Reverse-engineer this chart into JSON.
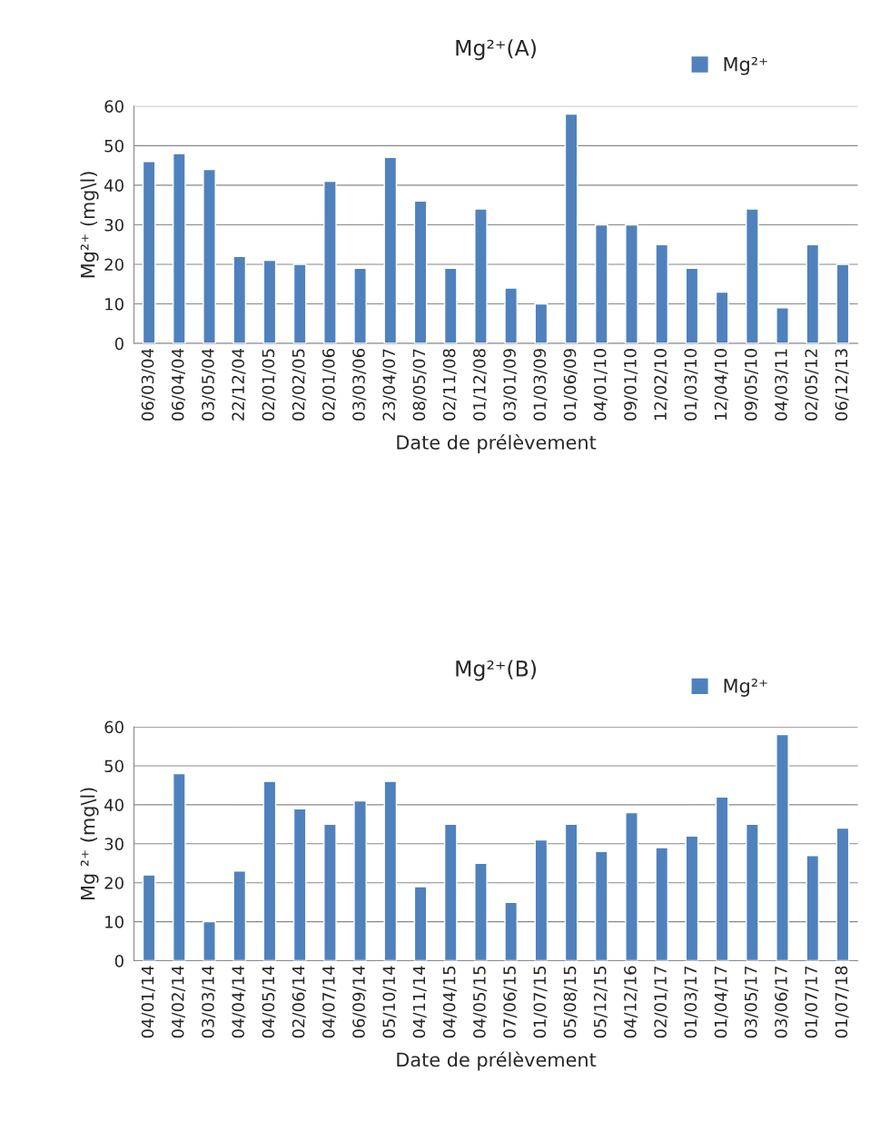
{
  "chart_data": [
    {
      "type": "bar",
      "title": "Mg²⁺(A)",
      "xlabel": "Date de prélèvement",
      "ylabel": "Mg²⁺ (mg\\l)",
      "categories": [
        "06/03/04",
        "06/04/04",
        "03/05/04",
        "22/12/04",
        "02/01/05",
        "02/02/05",
        "02/01/06",
        "03/03/06",
        "23/04/07",
        "08/05/07",
        "02/11/08",
        "01/12/08",
        "03/01/09",
        "01/03/09",
        "01/06/09",
        "04/01/10",
        "09/01/10",
        "12/02/10",
        "01/03/10",
        "12/04/10",
        "09/05/10",
        "04/03/11",
        "02/05/12",
        "06/12/13"
      ],
      "series": [
        {
          "name": "Mg²⁺",
          "color": "#4f81bd",
          "values": [
            46,
            48,
            44,
            22,
            21,
            20,
            41,
            19,
            47,
            36,
            19,
            34,
            14,
            10,
            58,
            30,
            30,
            25,
            19,
            13,
            34,
            9,
            25,
            20
          ]
        }
      ],
      "ylim": [
        0,
        60
      ],
      "yticks": [
        0,
        10,
        20,
        30,
        40,
        50,
        60
      ],
      "grid": "y",
      "legend": "top right"
    },
    {
      "type": "bar",
      "title": "Mg²⁺(B)",
      "xlabel": "Date de prélèvement",
      "ylabel": "Mg ²⁺ (mg\\l)",
      "categories": [
        "04/01/14",
        "04/02/14",
        "03/03/14",
        "04/04/14",
        "04/05/14",
        "02/06/14",
        "04/07/14",
        "06/09/14",
        "05/10/14",
        "04/11/14",
        "04/04/15",
        "04/05/15",
        "07/06/15",
        "01/07/15",
        "05/08/15",
        "05/12/15",
        "04/12/16",
        "02/01/17",
        "01/03/17",
        "01/04/17",
        "03/05/17",
        "03/06/17",
        "01/07/17",
        "01/07/18"
      ],
      "series": [
        {
          "name": "Mg²⁺",
          "color": "#4f81bd",
          "values": [
            22,
            48,
            10,
            23,
            46,
            39,
            35,
            41,
            46,
            19,
            35,
            25,
            15,
            31,
            35,
            28,
            38,
            29,
            32,
            42,
            35,
            58,
            27,
            34
          ]
        }
      ],
      "ylim": [
        0,
        60
      ],
      "yticks": [
        0,
        10,
        20,
        30,
        40,
        50,
        60
      ],
      "grid": "y",
      "legend": "top right"
    }
  ]
}
